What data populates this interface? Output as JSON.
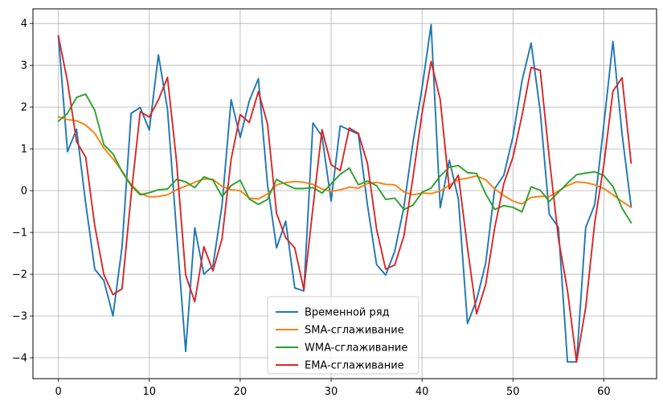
{
  "chart_data": {
    "type": "line",
    "title": "",
    "xlabel": "",
    "ylabel": "",
    "xlim": [
      -2.8,
      65.8
    ],
    "ylim": [
      -4.5,
      4.35
    ],
    "xticks": [
      0,
      10,
      20,
      30,
      40,
      50,
      60
    ],
    "yticks": [
      -4,
      -3,
      -2,
      -1,
      0,
      1,
      2,
      3,
      4
    ],
    "xtick_labels": [
      "0",
      "10",
      "20",
      "30",
      "40",
      "50",
      "60"
    ],
    "ytick_labels": [
      "−4",
      "−3",
      "−2",
      "−1",
      "0",
      "1",
      "2",
      "3",
      "4"
    ],
    "grid": true,
    "legend_position": "lower center",
    "x": [
      0,
      1,
      2,
      3,
      4,
      5,
      6,
      7,
      8,
      9,
      10,
      11,
      12,
      13,
      14,
      15,
      16,
      17,
      18,
      19,
      20,
      21,
      22,
      23,
      24,
      25,
      26,
      27,
      28,
      29,
      30,
      31,
      32,
      33,
      34,
      35,
      36,
      37,
      38,
      39,
      40,
      41,
      42,
      43,
      44,
      45,
      46,
      47,
      48,
      49,
      50,
      51,
      52,
      53,
      54,
      55,
      56,
      57,
      58,
      59,
      60,
      61,
      62,
      63
    ],
    "series": [
      {
        "name": "Временной ряд",
        "color": "#1f77b4",
        "values": [
          3.7,
          0.93,
          1.47,
          -0.3,
          -1.88,
          -2.15,
          -3.0,
          -1.35,
          1.85,
          1.99,
          1.45,
          3.25,
          1.95,
          -1.0,
          -3.85,
          -0.89,
          -2.0,
          -1.8,
          -0.35,
          2.18,
          1.27,
          2.15,
          2.68,
          0.15,
          -1.37,
          -0.73,
          -2.33,
          -2.4,
          1.62,
          1.3,
          -0.25,
          1.55,
          1.45,
          1.35,
          -0.35,
          -1.77,
          -2.02,
          -1.45,
          -0.4,
          1.15,
          2.45,
          3.97,
          -0.41,
          0.73,
          -0.2,
          -3.18,
          -2.62,
          -1.74,
          0.05,
          0.37,
          1.29,
          2.63,
          3.53,
          1.9,
          -0.57,
          -0.88,
          -4.1,
          -4.1,
          -0.89,
          -0.33,
          1.58,
          3.57,
          1.36,
          -0.38
        ]
      },
      {
        "name": "SMA-сглаживание",
        "color": "#ff7f0e",
        "values": [
          1.77,
          1.7,
          1.67,
          1.57,
          1.37,
          1.02,
          0.76,
          0.47,
          0.15,
          -0.07,
          -0.15,
          -0.14,
          -0.1,
          0.02,
          0.11,
          0.2,
          0.28,
          0.27,
          0.1,
          0.02,
          0.0,
          -0.18,
          -0.2,
          -0.08,
          0.14,
          0.19,
          0.22,
          0.2,
          0.15,
          0.04,
          -0.02,
          0.02,
          0.08,
          0.06,
          0.17,
          0.2,
          0.15,
          0.14,
          -0.03,
          -0.1,
          -0.06,
          -0.07,
          -0.01,
          0.13,
          0.26,
          0.3,
          0.35,
          0.26,
          0.04,
          -0.12,
          -0.25,
          -0.32,
          -0.16,
          -0.14,
          -0.14,
          -0.01,
          0.12,
          0.21,
          0.19,
          0.14,
          0.05,
          -0.1,
          -0.26,
          -0.4
        ]
      },
      {
        "name": "WMA-сглаживание",
        "color": "#2ca02c",
        "values": [
          1.66,
          1.85,
          2.23,
          2.31,
          1.92,
          1.1,
          0.88,
          0.45,
          0.12,
          -0.1,
          -0.05,
          0.02,
          0.04,
          0.27,
          0.21,
          0.07,
          0.33,
          0.25,
          -0.14,
          0.12,
          0.25,
          -0.2,
          -0.33,
          -0.21,
          0.27,
          0.15,
          0.05,
          0.05,
          0.07,
          -0.06,
          0.16,
          0.39,
          0.54,
          0.14,
          0.23,
          0.12,
          -0.21,
          -0.18,
          -0.45,
          -0.35,
          -0.04,
          0.06,
          0.35,
          0.56,
          0.6,
          0.43,
          0.41,
          -0.08,
          -0.45,
          -0.36,
          -0.4,
          -0.51,
          0.09,
          0.01,
          -0.26,
          -0.04,
          0.18,
          0.38,
          0.42,
          0.45,
          0.36,
          0.1,
          -0.42,
          -0.77
        ]
      },
      {
        "name": "EMA-сглаживание",
        "color": "#d62728",
        "values": [
          3.7,
          2.61,
          1.17,
          0.8,
          -0.84,
          -2.01,
          -2.49,
          -2.35,
          -0.11,
          1.89,
          1.76,
          2.17,
          2.71,
          0.69,
          -2.02,
          -2.66,
          -1.34,
          -1.92,
          -1.15,
          0.75,
          1.82,
          1.63,
          2.37,
          1.6,
          -0.55,
          -1.13,
          -1.37,
          -2.37,
          -0.41,
          1.46,
          0.62,
          0.48,
          1.5,
          1.37,
          0.65,
          -0.92,
          -1.88,
          -1.78,
          -1.09,
          0.31,
          1.85,
          3.09,
          2.18,
          0.04,
          0.37,
          -1.37,
          -2.95,
          -2.25,
          -0.88,
          0.17,
          0.8,
          1.8,
          2.95,
          2.88,
          0.78,
          -1.14,
          -2.39,
          -4.1,
          -2.8,
          -0.76,
          0.62,
          2.38,
          2.7,
          0.66
        ]
      }
    ]
  }
}
